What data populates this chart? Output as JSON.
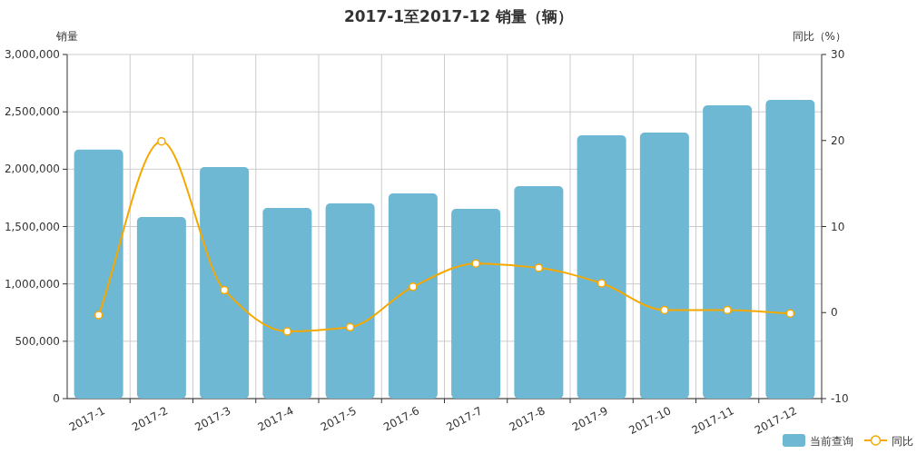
{
  "chart_data": {
    "type": "bar",
    "title": "2017-1至2017-12 销量（辆）",
    "ylabel": "销量",
    "y2label": "同比（%）",
    "categories": [
      "2017-1",
      "2017-2",
      "2017-3",
      "2017-4",
      "2017-5",
      "2017-6",
      "2017-7",
      "2017-8",
      "2017-9",
      "2017-10",
      "2017-11",
      "2017-12"
    ],
    "series": [
      {
        "name": "当前查询",
        "color": "#6fb8d4",
        "values": [
          2170000,
          1583000,
          2018000,
          1662000,
          1702000,
          1789000,
          1654000,
          1852000,
          2296000,
          2319000,
          2557000,
          2604000
        ]
      },
      {
        "name": "同比",
        "color": "#f5a800",
        "type": "line",
        "axis": "y2",
        "values": [
          -0.3,
          19.9,
          2.6,
          -2.2,
          -1.7,
          3.0,
          5.7,
          5.2,
          3.4,
          0.3,
          0.3,
          -0.1
        ]
      }
    ],
    "ylim": [
      0,
      3000000
    ],
    "yticks": [
      {
        "value": 0,
        "label": "0"
      },
      {
        "value": 500000,
        "label": "500,000"
      },
      {
        "value": 1000000,
        "label": "1,000,000"
      },
      {
        "value": 1500000,
        "label": "1,500,000"
      },
      {
        "value": 2000000,
        "label": "2,000,000"
      },
      {
        "value": 2500000,
        "label": "2,500,000"
      },
      {
        "value": 3000000,
        "label": "3,000,000"
      }
    ],
    "y2lim": [
      -10,
      30
    ],
    "y2ticks": [
      -10,
      0,
      10,
      20,
      30
    ],
    "grid": true,
    "legend": "bottom right",
    "marker": "circle"
  }
}
